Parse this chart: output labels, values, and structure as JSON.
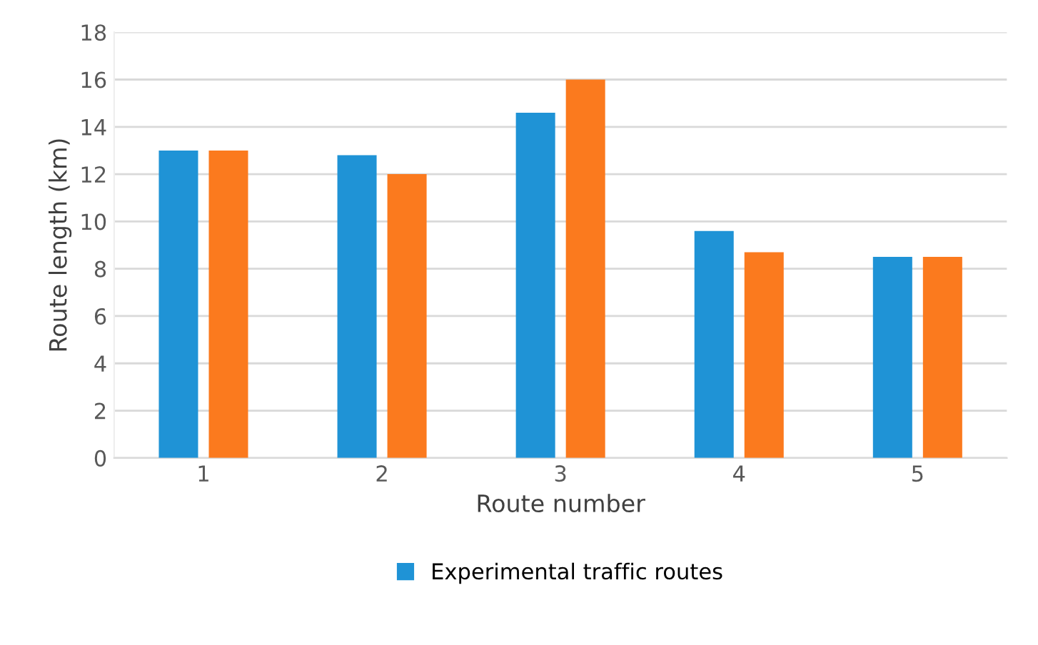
{
  "chart_data": {
    "type": "bar",
    "xlabel": "Route number",
    "ylabel": "Route length (km)",
    "categories": [
      "1",
      "2",
      "3",
      "4",
      "5"
    ],
    "series": [
      {
        "name": "Experimental traffic routes",
        "color": "#1f93d6",
        "values": [
          13,
          12.8,
          14.6,
          9.6,
          8.5
        ]
      },
      {
        "color": "#fb7a1e",
        "values": [
          13,
          12,
          16,
          8.7,
          8.5
        ]
      }
    ],
    "ylim": [
      0,
      18
    ],
    "yticks": [
      0,
      2,
      4,
      6,
      8,
      10,
      12,
      14,
      16,
      18
    ],
    "grid": "y",
    "legend": "bottom"
  }
}
